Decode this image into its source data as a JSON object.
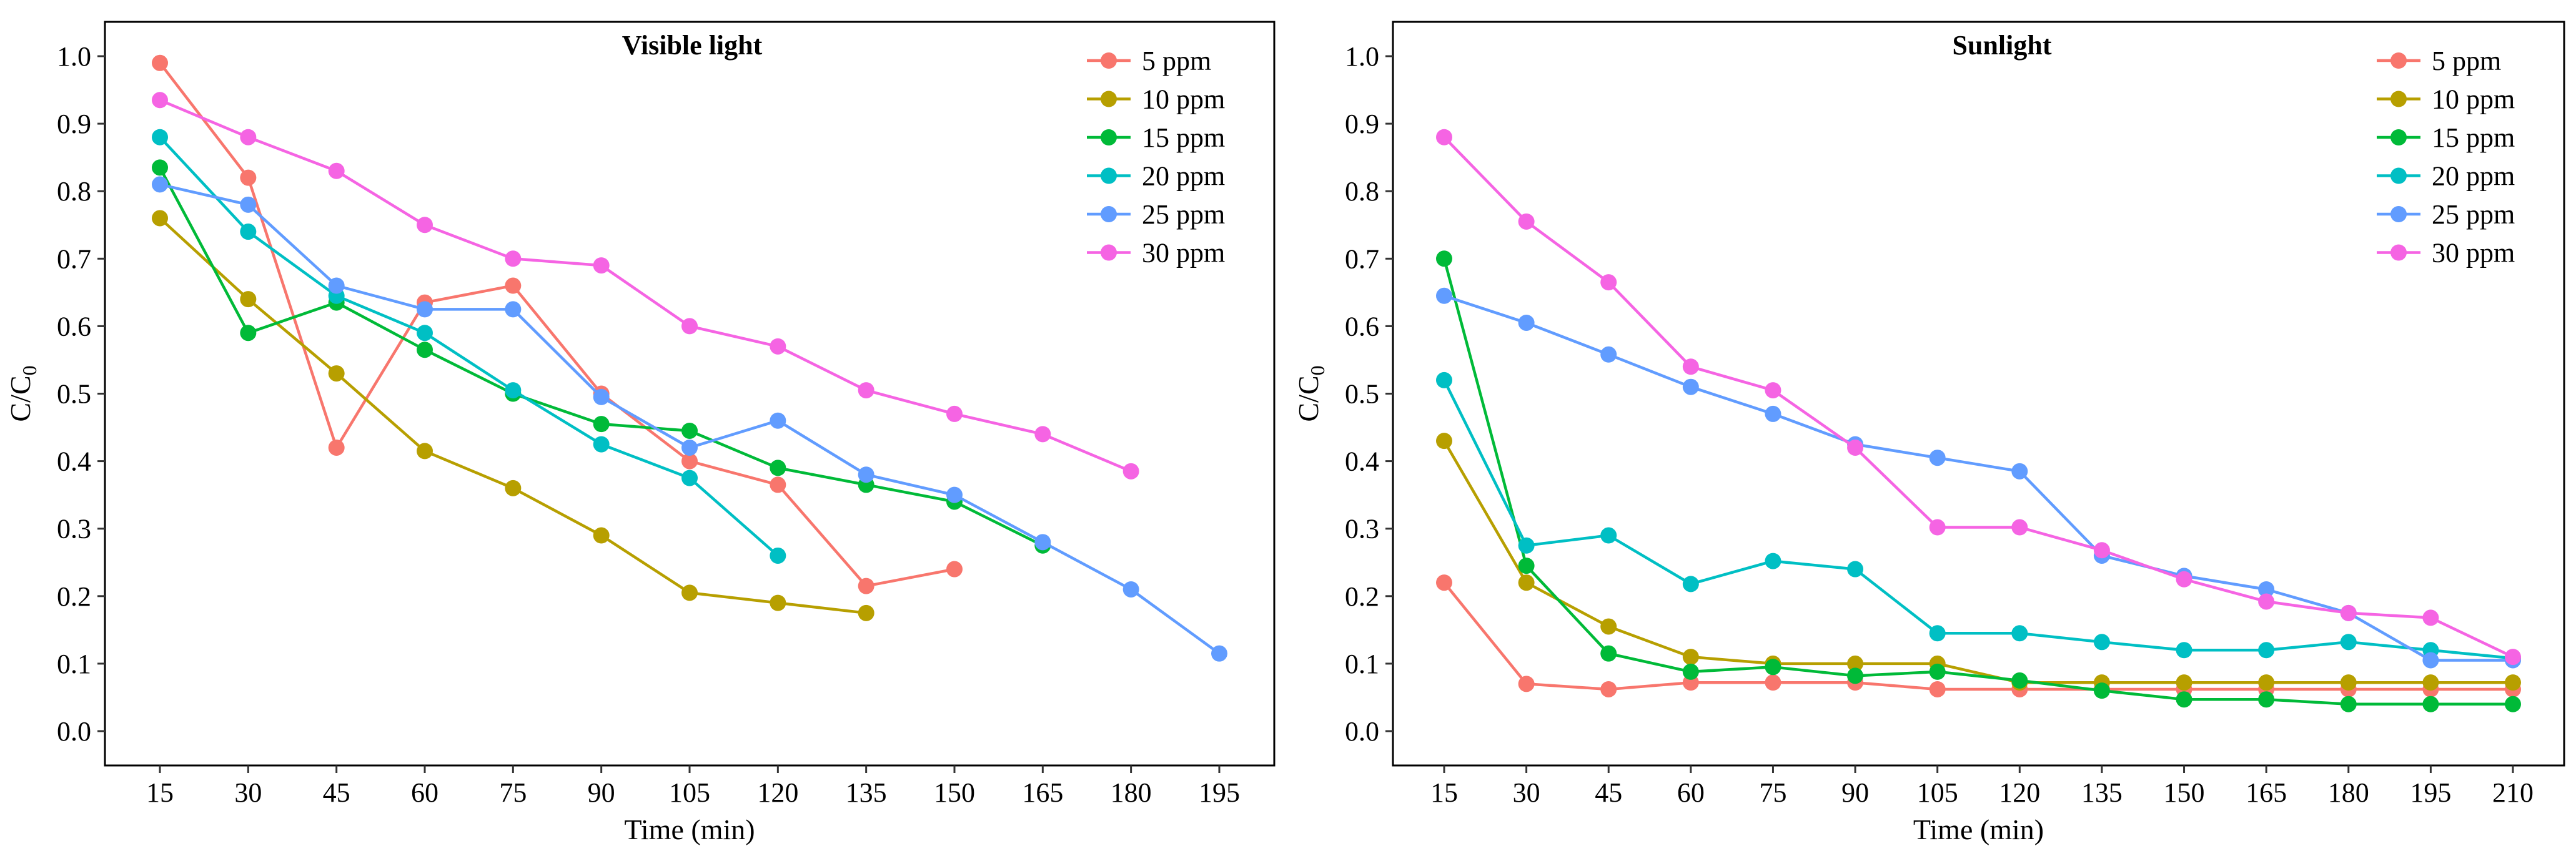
{
  "chart_data": [
    {
      "type": "line",
      "title": "Visible light",
      "xlabel": "Time (min)",
      "ylabel": "C/C",
      "ylabel_subscript": "0",
      "xlim": [
        15,
        195
      ],
      "ylim": [
        0,
        1
      ],
      "x_ticks": [
        15,
        30,
        45,
        60,
        75,
        90,
        105,
        120,
        135,
        150,
        165,
        180,
        195
      ],
      "x_tick_labels": [
        "15",
        "30",
        "45",
        "60",
        "75",
        "90",
        "105",
        "120",
        "135",
        "150",
        "165",
        "180",
        "195"
      ],
      "y_ticks": [
        0,
        0.1,
        0.2,
        0.3,
        0.4,
        0.5,
        0.6,
        0.7,
        0.8,
        0.9,
        1.0
      ],
      "y_tick_labels": [
        "0.0",
        "0.1",
        "0.2",
        "0.3",
        "0.4",
        "0.5",
        "0.6",
        "0.7",
        "0.8",
        "0.9",
        "1.0"
      ],
      "grid": false,
      "legend_position": "top-right",
      "series": [
        {
          "name": "5 ppm",
          "color": "#F8766D",
          "x": [
            15,
            30,
            45,
            60,
            75,
            90,
            105,
            120,
            135,
            150
          ],
          "y": [
            0.99,
            0.82,
            0.42,
            0.635,
            0.66,
            0.5,
            0.4,
            0.365,
            0.215,
            0.24
          ]
        },
        {
          "name": "10 ppm",
          "color": "#B79F00",
          "x": [
            15,
            30,
            45,
            60,
            75,
            90,
            105,
            120,
            135
          ],
          "y": [
            0.76,
            0.64,
            0.53,
            0.415,
            0.36,
            0.29,
            0.205,
            0.19,
            0.175
          ]
        },
        {
          "name": "15 ppm",
          "color": "#00BA38",
          "x": [
            15,
            30,
            45,
            60,
            75,
            90,
            105,
            120,
            135,
            150,
            165
          ],
          "y": [
            0.835,
            0.59,
            0.635,
            0.565,
            0.5,
            0.455,
            0.445,
            0.39,
            0.365,
            0.34,
            0.275
          ]
        },
        {
          "name": "20 ppm",
          "color": "#00BFC4",
          "x": [
            15,
            30,
            45,
            60,
            75,
            90,
            105,
            120
          ],
          "y": [
            0.88,
            0.74,
            0.645,
            0.59,
            0.505,
            0.425,
            0.375,
            0.26
          ]
        },
        {
          "name": "25 ppm",
          "color": "#619CFF",
          "x": [
            15,
            30,
            45,
            60,
            75,
            90,
            105,
            120,
            135,
            150,
            165,
            180,
            195
          ],
          "y": [
            0.81,
            0.78,
            0.66,
            0.625,
            0.625,
            0.495,
            0.42,
            0.46,
            0.38,
            0.35,
            0.28,
            0.21,
            0.115
          ]
        },
        {
          "name": "30 ppm",
          "color": "#F564E3",
          "x": [
            15,
            30,
            45,
            60,
            75,
            90,
            105,
            120,
            135,
            150,
            165,
            180
          ],
          "y": [
            0.935,
            0.88,
            0.83,
            0.75,
            0.7,
            0.69,
            0.6,
            0.57,
            0.505,
            0.47,
            0.44,
            0.385
          ]
        }
      ]
    },
    {
      "type": "line",
      "title": "Sunlight",
      "xlabel": "Time (min)",
      "ylabel": "C/C",
      "ylabel_subscript": "0",
      "xlim": [
        15,
        210
      ],
      "ylim": [
        0,
        1
      ],
      "x_ticks": [
        15,
        30,
        45,
        60,
        75,
        90,
        105,
        120,
        135,
        150,
        165,
        180,
        195,
        210
      ],
      "x_tick_labels": [
        "15",
        "30",
        "45",
        "60",
        "75",
        "90",
        "105",
        "120",
        "135",
        "150",
        "165",
        "180",
        "195",
        "210"
      ],
      "y_ticks": [
        0,
        0.1,
        0.2,
        0.3,
        0.4,
        0.5,
        0.6,
        0.7,
        0.8,
        0.9,
        1.0
      ],
      "y_tick_labels": [
        "0.0",
        "0.1",
        "0.2",
        "0.3",
        "0.4",
        "0.5",
        "0.6",
        "0.7",
        "0.8",
        "0.9",
        "1.0"
      ],
      "grid": false,
      "legend_position": "top-right",
      "series": [
        {
          "name": "5 ppm",
          "color": "#F8766D",
          "x": [
            15,
            30,
            45,
            60,
            75,
            90,
            105,
            120,
            135,
            150,
            165,
            180,
            195,
            210
          ],
          "y": [
            0.22,
            0.07,
            0.062,
            0.072,
            0.072,
            0.072,
            0.062,
            0.062,
            0.062,
            0.062,
            0.062,
            0.062,
            0.062,
            0.062
          ]
        },
        {
          "name": "10 ppm",
          "color": "#B79F00",
          "x": [
            15,
            30,
            45,
            60,
            75,
            90,
            105,
            120,
            135,
            150,
            165,
            180,
            195,
            210
          ],
          "y": [
            0.43,
            0.22,
            0.155,
            0.11,
            0.1,
            0.1,
            0.1,
            0.072,
            0.072,
            0.072,
            0.072,
            0.072,
            0.072,
            0.072
          ]
        },
        {
          "name": "15 ppm",
          "color": "#00BA38",
          "x": [
            15,
            30,
            45,
            60,
            75,
            90,
            105,
            120,
            135,
            150,
            165,
            180,
            195,
            210
          ],
          "y": [
            0.7,
            0.245,
            0.115,
            0.088,
            0.095,
            0.082,
            0.088,
            0.075,
            0.06,
            0.047,
            0.047,
            0.04,
            0.04,
            0.04
          ]
        },
        {
          "name": "20 ppm",
          "color": "#00BFC4",
          "x": [
            15,
            30,
            45,
            60,
            75,
            90,
            105,
            120,
            135,
            150,
            165,
            180,
            195,
            210
          ],
          "y": [
            0.52,
            0.275,
            0.29,
            0.218,
            0.252,
            0.24,
            0.145,
            0.145,
            0.132,
            0.12,
            0.12,
            0.132,
            0.12,
            0.108
          ]
        },
        {
          "name": "25 ppm",
          "color": "#619CFF",
          "x": [
            15,
            30,
            45,
            60,
            75,
            90,
            105,
            120,
            135,
            150,
            165,
            180,
            195,
            210
          ],
          "y": [
            0.645,
            0.605,
            0.558,
            0.51,
            0.47,
            0.425,
            0.405,
            0.385,
            0.26,
            0.23,
            0.21,
            0.175,
            0.105,
            0.105
          ]
        },
        {
          "name": "30 ppm",
          "color": "#F564E3",
          "x": [
            15,
            30,
            45,
            60,
            75,
            90,
            105,
            120,
            135,
            150,
            165,
            180,
            195,
            210
          ],
          "y": [
            0.88,
            0.755,
            0.665,
            0.54,
            0.505,
            0.42,
            0.302,
            0.302,
            0.268,
            0.225,
            0.192,
            0.175,
            0.168,
            0.11
          ]
        }
      ]
    }
  ]
}
